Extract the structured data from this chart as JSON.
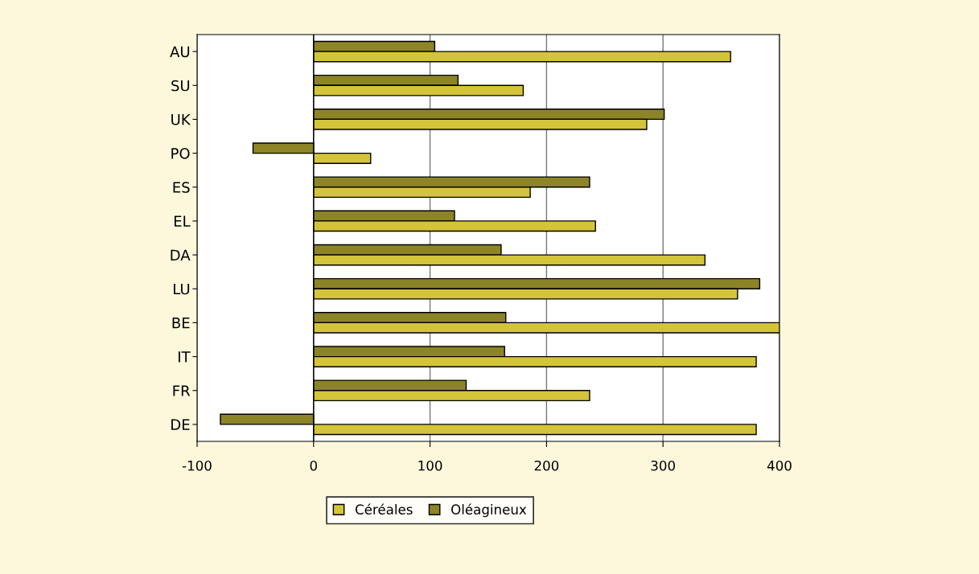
{
  "chart_data": {
    "type": "bar",
    "orientation": "horizontal",
    "categories": [
      "AU",
      "SU",
      "UK",
      "PO",
      "ES",
      "EL",
      "DA",
      "LU",
      "BE",
      "IT",
      "FR",
      "DE"
    ],
    "series": [
      {
        "name": "Oléagineux",
        "color": "#8c8426",
        "values": [
          104,
          124,
          301,
          -52,
          237,
          121,
          161,
          383,
          165,
          164,
          131,
          -80
        ]
      },
      {
        "name": "Céréales",
        "color": "#d4c43a",
        "values": [
          358,
          180,
          286,
          49,
          186,
          242,
          336,
          364,
          400,
          380,
          237,
          380
        ]
      }
    ],
    "xlim": [
      -100,
      400
    ],
    "xticks": [
      -100,
      0,
      100,
      200,
      300,
      400
    ],
    "grid": "x",
    "legend": "bottom"
  }
}
